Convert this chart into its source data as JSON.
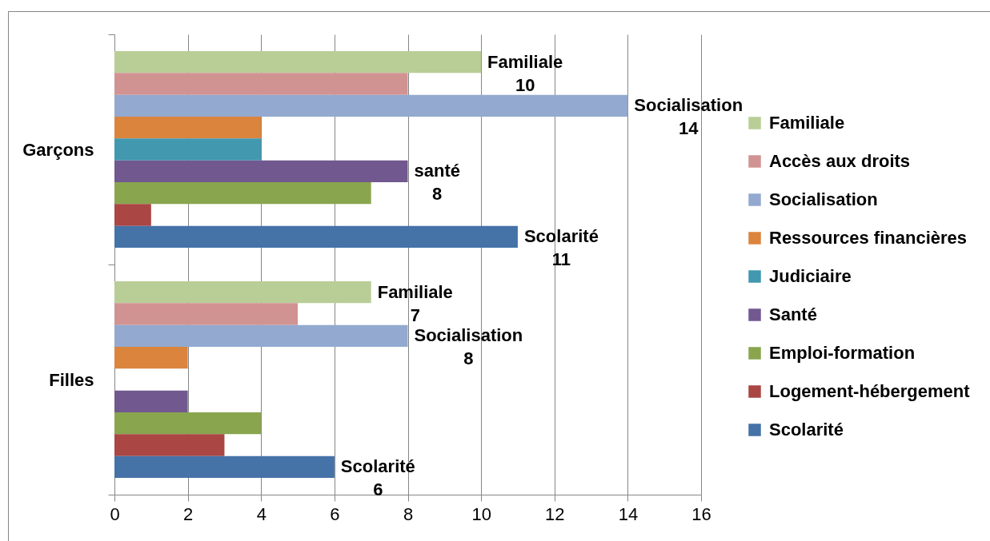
{
  "chart_data": {
    "type": "bar",
    "orientation": "horizontal",
    "categories": [
      "Garçons",
      "Filles"
    ],
    "series": [
      {
        "name": "Familiale",
        "color": "#b9cd96",
        "values": [
          10,
          7
        ],
        "value_labels": [
          "Familiale 10",
          "Familiale 7"
        ]
      },
      {
        "name": "Accès aux droits",
        "color": "#d19392",
        "values": [
          8,
          5
        ]
      },
      {
        "name": "Socialisation",
        "color": "#93a9cf",
        "values": [
          14,
          8
        ],
        "value_labels": [
          "Socialisation 14",
          "Socialisation 8"
        ]
      },
      {
        "name": "Ressources financières",
        "color": "#db843d",
        "values": [
          4,
          2
        ]
      },
      {
        "name": "Judiciaire",
        "color": "#4198af",
        "values": [
          4,
          null
        ]
      },
      {
        "name": "Santé",
        "color": "#71588f",
        "values": [
          8,
          2
        ],
        "value_labels": [
          "santé 8",
          null
        ]
      },
      {
        "name": "Emploi-formation",
        "color": "#89a54e",
        "values": [
          7,
          4
        ]
      },
      {
        "name": "Logement-hébergement",
        "color": "#aa4643",
        "values": [
          1,
          3
        ]
      },
      {
        "name": "Scolarité",
        "color": "#4572a7",
        "values": [
          11,
          6
        ],
        "value_labels": [
          "Scolarité 11",
          "Scolarité 6"
        ]
      }
    ],
    "xlim": [
      0,
      16
    ],
    "xticks": [
      0,
      2,
      4,
      6,
      8,
      10,
      12,
      14,
      16
    ],
    "grid": "x",
    "legend": "right"
  }
}
